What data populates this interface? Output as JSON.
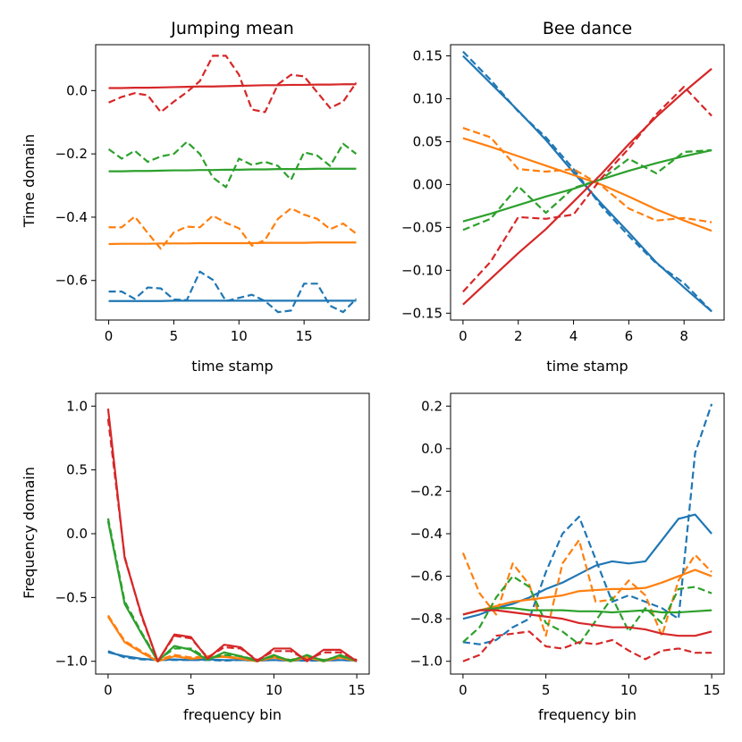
{
  "figure": {
    "colors": [
      "#1f77b4",
      "#ff7f0e",
      "#2ca02c",
      "#d62728"
    ],
    "line_styles": {
      "solid": "solid",
      "dashed": "dashed"
    }
  },
  "chart_data": [
    {
      "type": "line",
      "title": "Jumping mean",
      "xlabel": "time stamp",
      "ylabel": "Time domain",
      "xlim": [
        -1,
        20
      ],
      "ylim": [
        -0.725,
        0.145
      ],
      "xticks": [
        0,
        5,
        10,
        15
      ],
      "xtick_labels": [
        "0",
        "5",
        "10",
        "15"
      ],
      "yticks": [
        0.0,
        -0.2,
        -0.4,
        -0.6
      ],
      "ytick_labels": [
        "0.0",
        "−0.2",
        "−0.4",
        "−0.6"
      ],
      "x": [
        0,
        1,
        2,
        3,
        4,
        5,
        6,
        7,
        8,
        9,
        10,
        11,
        12,
        13,
        14,
        15,
        16,
        17,
        18,
        19
      ],
      "series": [
        {
          "name": "blue solid",
          "color_index": 0,
          "style": "solid",
          "values": [
            -0.665,
            -0.665,
            -0.665,
            -0.665,
            -0.665,
            -0.664,
            -0.664,
            -0.664,
            -0.664,
            -0.664,
            -0.664,
            -0.664,
            -0.664,
            -0.664,
            -0.664,
            -0.664,
            -0.664,
            -0.664,
            -0.664,
            -0.664
          ]
        },
        {
          "name": "blue dashed",
          "color_index": 0,
          "style": "dashed",
          "values": [
            -0.635,
            -0.635,
            -0.658,
            -0.622,
            -0.625,
            -0.66,
            -0.662,
            -0.572,
            -0.598,
            -0.665,
            -0.655,
            -0.645,
            -0.665,
            -0.7,
            -0.695,
            -0.61,
            -0.61,
            -0.68,
            -0.7,
            -0.658
          ]
        },
        {
          "name": "orange solid",
          "color_index": 1,
          "style": "solid",
          "values": [
            -0.485,
            -0.484,
            -0.484,
            -0.484,
            -0.483,
            -0.483,
            -0.483,
            -0.482,
            -0.482,
            -0.482,
            -0.482,
            -0.482,
            -0.481,
            -0.481,
            -0.481,
            -0.481,
            -0.48,
            -0.48,
            -0.48,
            -0.48
          ]
        },
        {
          "name": "orange dashed",
          "color_index": 1,
          "style": "dashed",
          "values": [
            -0.432,
            -0.432,
            -0.398,
            -0.45,
            -0.5,
            -0.448,
            -0.43,
            -0.432,
            -0.395,
            -0.418,
            -0.435,
            -0.49,
            -0.472,
            -0.405,
            -0.372,
            -0.392,
            -0.405,
            -0.438,
            -0.42,
            -0.452
          ]
        },
        {
          "name": "green solid",
          "color_index": 2,
          "style": "solid",
          "values": [
            -0.255,
            -0.255,
            -0.254,
            -0.254,
            -0.253,
            -0.252,
            -0.252,
            -0.251,
            -0.251,
            -0.25,
            -0.25,
            -0.249,
            -0.249,
            -0.248,
            -0.248,
            -0.248,
            -0.247,
            -0.247,
            -0.247,
            -0.247
          ]
        },
        {
          "name": "green dashed",
          "color_index": 2,
          "style": "dashed",
          "values": [
            -0.185,
            -0.215,
            -0.19,
            -0.225,
            -0.208,
            -0.2,
            -0.162,
            -0.2,
            -0.275,
            -0.305,
            -0.215,
            -0.235,
            -0.225,
            -0.238,
            -0.282,
            -0.195,
            -0.205,
            -0.238,
            -0.168,
            -0.2
          ]
        },
        {
          "name": "red solid",
          "color_index": 3,
          "style": "solid",
          "values": [
            0.008,
            0.008,
            0.009,
            0.009,
            0.01,
            0.011,
            0.012,
            0.013,
            0.013,
            0.014,
            0.015,
            0.016,
            0.017,
            0.017,
            0.018,
            0.018,
            0.019,
            0.019,
            0.02,
            0.02
          ]
        },
        {
          "name": "red dashed",
          "color_index": 3,
          "style": "dashed",
          "values": [
            -0.038,
            -0.02,
            -0.008,
            -0.015,
            -0.068,
            -0.035,
            -0.005,
            0.03,
            0.11,
            0.11,
            0.05,
            -0.06,
            -0.068,
            0.02,
            0.05,
            0.045,
            -0.005,
            -0.055,
            -0.035,
            0.025
          ]
        }
      ]
    },
    {
      "type": "line",
      "title": "Bee dance",
      "xlabel": "time stamp",
      "ylabel": "",
      "xlim": [
        -0.45,
        9.45
      ],
      "ylim": [
        -0.158,
        0.163
      ],
      "xticks": [
        0,
        2,
        4,
        6,
        8
      ],
      "xtick_labels": [
        "0",
        "2",
        "4",
        "6",
        "8"
      ],
      "yticks": [
        0.15,
        0.1,
        0.05,
        0.0,
        -0.05,
        -0.1,
        -0.15
      ],
      "ytick_labels": [
        "0.15",
        "0.10",
        "0.05",
        "0.00",
        "−0.05",
        "−0.10",
        "−0.15"
      ],
      "x": [
        0,
        1,
        2,
        3,
        4,
        5,
        6,
        7,
        8,
        9
      ],
      "series": [
        {
          "name": "blue solid",
          "color_index": 0,
          "style": "solid",
          "values": [
            0.15,
            0.118,
            0.086,
            0.052,
            0.014,
            -0.022,
            -0.056,
            -0.091,
            -0.12,
            -0.148
          ]
        },
        {
          "name": "blue dashed",
          "color_index": 0,
          "style": "dashed",
          "values": [
            0.155,
            0.122,
            0.085,
            0.055,
            0.018,
            -0.025,
            -0.06,
            -0.092,
            -0.115,
            -0.148
          ]
        },
        {
          "name": "orange solid",
          "color_index": 1,
          "style": "solid",
          "values": [
            0.054,
            0.044,
            0.033,
            0.022,
            0.011,
            0.0,
            -0.014,
            -0.029,
            -0.042,
            -0.054
          ]
        },
        {
          "name": "orange dashed",
          "color_index": 1,
          "style": "dashed",
          "values": [
            0.066,
            0.055,
            0.018,
            0.015,
            0.018,
            -0.001,
            -0.028,
            -0.042,
            -0.039,
            -0.044
          ]
        },
        {
          "name": "green solid",
          "color_index": 2,
          "style": "solid",
          "values": [
            -0.043,
            -0.034,
            -0.024,
            -0.014,
            -0.005,
            0.006,
            0.016,
            0.025,
            0.033,
            0.04
          ]
        },
        {
          "name": "green dashed",
          "color_index": 2,
          "style": "dashed",
          "values": [
            -0.053,
            -0.04,
            -0.002,
            -0.033,
            -0.004,
            0.006,
            0.03,
            0.013,
            0.038,
            0.04
          ]
        },
        {
          "name": "red solid",
          "color_index": 3,
          "style": "solid",
          "values": [
            -0.14,
            -0.11,
            -0.08,
            -0.052,
            -0.02,
            0.012,
            0.047,
            0.079,
            0.108,
            0.135
          ]
        },
        {
          "name": "red dashed",
          "color_index": 3,
          "style": "dashed",
          "values": [
            -0.125,
            -0.09,
            -0.038,
            -0.04,
            -0.035,
            0.007,
            0.042,
            0.082,
            0.114,
            0.08
          ]
        }
      ]
    },
    {
      "type": "line",
      "title": "",
      "xlabel": "frequency bin",
      "ylabel": "Frequency domain",
      "xlim": [
        -0.75,
        15.75
      ],
      "ylim": [
        -1.1,
        1.1
      ],
      "xticks": [
        0,
        5,
        10,
        15
      ],
      "xtick_labels": [
        "0",
        "5",
        "10",
        "15"
      ],
      "yticks": [
        1.0,
        0.5,
        0.0,
        -0.5,
        -1.0
      ],
      "ytick_labels": [
        "1.0",
        "0.5",
        "0.0",
        "−0.5",
        "−1.0"
      ],
      "x": [
        0,
        1,
        2,
        3,
        4,
        5,
        6,
        7,
        8,
        9,
        10,
        11,
        12,
        13,
        14,
        15
      ],
      "series": [
        {
          "name": "blue solid",
          "color_index": 0,
          "style": "solid",
          "values": [
            -0.93,
            -0.96,
            -0.98,
            -0.99,
            -0.985,
            -0.99,
            -0.985,
            -0.99,
            -0.99,
            -0.995,
            -0.99,
            -0.995,
            -0.99,
            -0.995,
            -0.99,
            -0.995
          ]
        },
        {
          "name": "blue dashed",
          "color_index": 0,
          "style": "dashed",
          "values": [
            -0.92,
            -0.97,
            -0.985,
            -0.99,
            -0.99,
            -0.99,
            -0.99,
            -0.995,
            -0.99,
            -0.995,
            -0.99,
            -0.995,
            -0.995,
            -0.995,
            -0.99,
            -0.995
          ]
        },
        {
          "name": "orange solid",
          "color_index": 1,
          "style": "solid",
          "values": [
            -0.65,
            -0.85,
            -0.93,
            -1.0,
            -0.96,
            -0.98,
            -0.97,
            -0.965,
            -0.98,
            -1.0,
            -0.97,
            -1.0,
            -0.97,
            -1.0,
            -0.97,
            -1.0
          ]
        },
        {
          "name": "orange dashed",
          "color_index": 1,
          "style": "dashed",
          "values": [
            -0.64,
            -0.84,
            -0.92,
            -0.99,
            -0.95,
            -0.97,
            -0.96,
            -0.96,
            -0.975,
            -0.99,
            -0.965,
            -0.99,
            -0.96,
            -0.99,
            -0.965,
            -0.99
          ]
        },
        {
          "name": "green solid",
          "color_index": 2,
          "style": "solid",
          "values": [
            0.1,
            -0.55,
            -0.78,
            -1.0,
            -0.88,
            -0.91,
            -0.99,
            -0.93,
            -0.96,
            -1.0,
            -0.95,
            -1.0,
            -0.95,
            -1.0,
            -0.95,
            -1.0
          ]
        },
        {
          "name": "green dashed",
          "color_index": 2,
          "style": "dashed",
          "values": [
            0.12,
            -0.53,
            -0.77,
            -0.99,
            -0.9,
            -0.9,
            -0.98,
            -0.95,
            -0.96,
            -0.99,
            -0.96,
            -0.99,
            -0.96,
            -0.99,
            -0.96,
            -0.99
          ]
        },
        {
          "name": "red solid",
          "color_index": 3,
          "style": "solid",
          "values": [
            0.98,
            -0.19,
            -0.63,
            -1.0,
            -0.79,
            -0.81,
            -0.98,
            -0.87,
            -0.89,
            -1.0,
            -0.9,
            -0.9,
            -1.0,
            -0.91,
            -0.91,
            -1.0
          ]
        },
        {
          "name": "red dashed",
          "color_index": 3,
          "style": "dashed",
          "values": [
            0.9,
            -0.18,
            -0.64,
            -1.0,
            -0.8,
            -0.82,
            -0.97,
            -0.89,
            -0.9,
            -0.99,
            -0.92,
            -0.92,
            -0.99,
            -0.93,
            -0.93,
            -0.99
          ]
        }
      ]
    },
    {
      "type": "line",
      "title": "",
      "xlabel": "frequency bin",
      "ylabel": "",
      "xlim": [
        -0.75,
        15.75
      ],
      "ylim": [
        -1.06,
        0.26
      ],
      "xticks": [
        0,
        5,
        10,
        15
      ],
      "xtick_labels": [
        "0",
        "5",
        "10",
        "15"
      ],
      "yticks": [
        0.2,
        0.0,
        -0.2,
        -0.4,
        -0.6,
        -0.8,
        -1.0
      ],
      "ytick_labels": [
        "0.2",
        "0.0",
        "−0.2",
        "−0.4",
        "−0.6",
        "−0.8",
        "−1.0"
      ],
      "x": [
        0,
        1,
        2,
        3,
        4,
        5,
        6,
        7,
        8,
        9,
        10,
        11,
        12,
        13,
        14,
        15
      ],
      "series": [
        {
          "name": "blue solid",
          "color_index": 0,
          "style": "solid",
          "values": [
            -0.8,
            -0.78,
            -0.75,
            -0.73,
            -0.7,
            -0.66,
            -0.63,
            -0.59,
            -0.55,
            -0.53,
            -0.54,
            -0.53,
            -0.43,
            -0.33,
            -0.31,
            -0.4
          ]
        },
        {
          "name": "blue dashed",
          "color_index": 0,
          "style": "dashed",
          "values": [
            -0.91,
            -0.92,
            -0.9,
            -0.84,
            -0.8,
            -0.58,
            -0.4,
            -0.32,
            -0.52,
            -0.72,
            -0.69,
            -0.72,
            -0.75,
            -0.8,
            -0.02,
            0.21
          ]
        },
        {
          "name": "orange solid",
          "color_index": 1,
          "style": "solid",
          "values": [
            -0.78,
            -0.76,
            -0.74,
            -0.72,
            -0.71,
            -0.7,
            -0.69,
            -0.67,
            -0.665,
            -0.66,
            -0.66,
            -0.655,
            -0.63,
            -0.6,
            -0.57,
            -0.6
          ]
        },
        {
          "name": "orange dashed",
          "color_index": 1,
          "style": "dashed",
          "values": [
            -0.49,
            -0.68,
            -0.78,
            -0.54,
            -0.64,
            -0.88,
            -0.54,
            -0.43,
            -0.72,
            -0.71,
            -0.62,
            -0.69,
            -0.88,
            -0.62,
            -0.5,
            -0.58
          ]
        },
        {
          "name": "green solid",
          "color_index": 2,
          "style": "solid",
          "values": [
            -0.78,
            -0.76,
            -0.75,
            -0.75,
            -0.76,
            -0.76,
            -0.76,
            -0.765,
            -0.765,
            -0.77,
            -0.765,
            -0.76,
            -0.77,
            -0.77,
            -0.765,
            -0.76
          ]
        },
        {
          "name": "green dashed",
          "color_index": 2,
          "style": "dashed",
          "values": [
            -0.91,
            -0.84,
            -0.7,
            -0.6,
            -0.65,
            -0.82,
            -0.86,
            -0.92,
            -0.81,
            -0.7,
            -0.86,
            -0.75,
            -0.82,
            -0.66,
            -0.65,
            -0.68
          ]
        },
        {
          "name": "red solid",
          "color_index": 3,
          "style": "solid",
          "values": [
            -0.78,
            -0.76,
            -0.76,
            -0.77,
            -0.78,
            -0.79,
            -0.8,
            -0.82,
            -0.83,
            -0.84,
            -0.84,
            -0.85,
            -0.87,
            -0.88,
            -0.88,
            -0.86
          ]
        },
        {
          "name": "red dashed",
          "color_index": 3,
          "style": "dashed",
          "values": [
            -1.0,
            -0.97,
            -0.88,
            -0.87,
            -0.86,
            -0.93,
            -0.94,
            -0.91,
            -0.92,
            -0.9,
            -0.95,
            -0.99,
            -0.95,
            -0.94,
            -0.96,
            -0.96
          ]
        }
      ]
    }
  ]
}
